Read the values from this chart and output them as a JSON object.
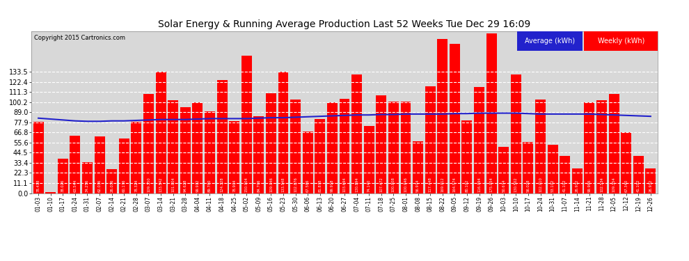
{
  "title": "Solar Energy & Running Average Production Last 52 Weeks Tue Dec 29 16:09",
  "copyright": "Copyright 2015 Cartronics.com",
  "legend_avg": "Average (kWh)",
  "legend_weekly": "Weekly (kWh)",
  "bar_color": "#ff0000",
  "avg_line_color": "#2222cc",
  "background_color": "#ffffff",
  "plot_bg_color": "#d8d8d8",
  "grid_color": "white",
  "ylim": [
    0,
    178
  ],
  "yticks": [
    0.0,
    11.1,
    22.3,
    33.4,
    44.5,
    55.6,
    66.8,
    77.9,
    89.0,
    100.2,
    111.3,
    122.4,
    133.5
  ],
  "categories": [
    "01-03",
    "01-10",
    "01-17",
    "01-24",
    "01-31",
    "02-07",
    "02-14",
    "02-21",
    "02-28",
    "03-07",
    "03-14",
    "03-21",
    "03-28",
    "04-04",
    "04-11",
    "04-18",
    "04-25",
    "05-02",
    "05-09",
    "05-16",
    "05-23",
    "05-30",
    "06-06",
    "06-13",
    "06-20",
    "06-27",
    "07-04",
    "07-11",
    "07-18",
    "07-25",
    "08-01",
    "08-08",
    "08-15",
    "08-22",
    "09-05",
    "09-12",
    "09-19",
    "09-26",
    "10-03",
    "10-10",
    "10-17",
    "10-24",
    "10-31",
    "11-07",
    "11-14",
    "11-21",
    "11-28",
    "12-05",
    "12-12",
    "12-19",
    "12-26"
  ],
  "weekly_values": [
    78.418,
    1.03,
    38.026,
    63.544,
    34.256,
    62.036,
    26.036,
    60.176,
    78.324,
    109.35,
    133.542,
    101.904,
    94.628,
    99.912,
    89.78,
    124.328,
    78.904,
    150.904,
    84.796,
    109.946,
    133.548,
    102.876,
    67.586,
    81.878,
    99.918,
    103.694,
    130.894,
    74.14,
    107.472,
    100.808,
    100.946,
    56.974,
    117.448,
    169.912,
    164.574,
    80.102,
    116.994,
    175.954,
    50.674,
    130.502,
    56.028,
    102.91,
    53.102,
    41.102,
    26.932,
    99.986,
    102.534,
    109.354,
    67.34,
    41.102,
    26.932
  ],
  "avg_values": [
    82.5,
    81.5,
    80.5,
    79.5,
    79.0,
    79.0,
    79.5,
    79.5,
    80.0,
    80.5,
    81.0,
    81.0,
    81.0,
    81.5,
    82.0,
    82.0,
    82.0,
    82.0,
    82.5,
    83.0,
    83.0,
    83.5,
    84.0,
    84.5,
    85.0,
    85.5,
    86.0,
    86.0,
    86.5,
    86.5,
    87.0,
    87.0,
    87.0,
    87.0,
    87.5,
    87.5,
    88.0,
    88.0,
    88.0,
    88.0,
    87.5,
    87.0,
    87.0,
    87.0,
    87.0,
    87.0,
    86.5,
    86.0,
    85.5,
    85.0,
    84.5
  ],
  "title_fontsize": 10,
  "copyright_fontsize": 6,
  "tick_fontsize": 7,
  "xtick_fontsize": 5.5,
  "bar_label_fontsize": 3.8,
  "legend_fontsize": 7
}
